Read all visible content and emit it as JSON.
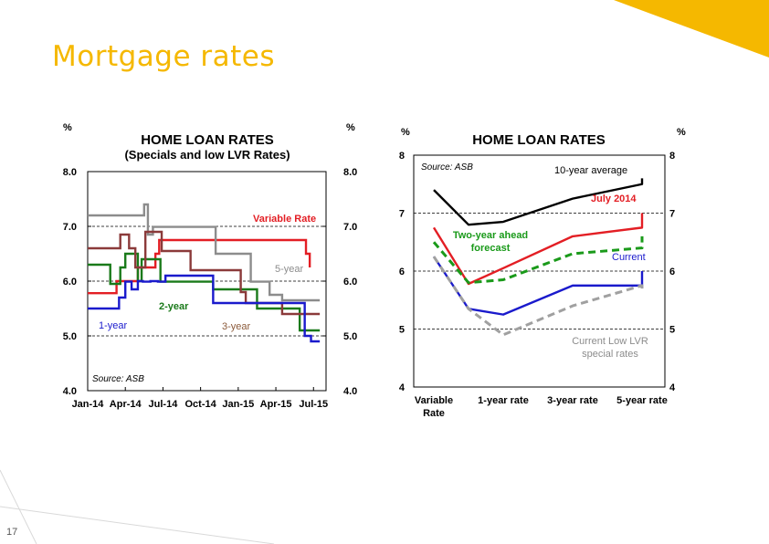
{
  "slide": {
    "title": "Mortgage rates",
    "page_number": "17",
    "accent_color": "#f5b800"
  },
  "chart_data": [
    {
      "type": "line",
      "title": "HOME LOAN RATES",
      "subtitle": "(Specials and low LVR Rates)",
      "unit_left": "%",
      "unit_right": "%",
      "source": "Source:  ASB",
      "ylim": [
        4.0,
        8.0
      ],
      "y_ticks": [
        "4.0",
        "5.0",
        "6.0",
        "7.0",
        "8.0"
      ],
      "x_tick_labels": [
        "Jan-14",
        "Apr-14",
        "Jul-14",
        "Oct-14",
        "Jan-15",
        "Apr-15",
        "Jul-15"
      ],
      "xlim": [
        0,
        19
      ],
      "dashed_gridlines": [
        5.0,
        6.0,
        7.0
      ],
      "step": true,
      "series": [
        {
          "name": "Variable Rate",
          "color": "#e31e24",
          "x": [
            0,
            1.9,
            2.3,
            3.3,
            4,
            4.6,
            5.4,
            5.7,
            6.9,
            17,
            17.4,
            17.7
          ],
          "y": [
            5.78,
            5.78,
            6.0,
            6.0,
            6.25,
            6.25,
            6.5,
            6.75,
            6.75,
            6.75,
            6.5,
            6.25
          ]
        },
        {
          "name": "5-year",
          "color": "#8c8c8c",
          "x": [
            0,
            2.5,
            4.5,
            4.8,
            5.2,
            10,
            10.2,
            12.5,
            13,
            14.5,
            15.5,
            18.5
          ],
          "y": [
            7.2,
            7.2,
            7.4,
            6.85,
            6.99,
            6.99,
            6.5,
            6.5,
            5.99,
            5.75,
            5.65,
            5.65
          ]
        },
        {
          "name": "2-year",
          "color": "#1a7a1a",
          "x": [
            0,
            1.3,
            1.8,
            2.6,
            3.0,
            3.5,
            4.0,
            4.3,
            5.5,
            5.8,
            6.4,
            7.5,
            10.0,
            13.0,
            13.5,
            16.5,
            16.9,
            18.5
          ],
          "y": [
            6.3,
            6.3,
            5.95,
            6.25,
            6.5,
            6.5,
            6.0,
            6.4,
            6.4,
            5.99,
            5.99,
            5.99,
            5.85,
            5.85,
            5.5,
            5.5,
            5.1,
            5.1
          ]
        },
        {
          "name": "3-year",
          "color": "#8b3a3a",
          "x": [
            0,
            2.0,
            2.6,
            3.3,
            3.8,
            4.3,
            4.6,
            5.5,
            5.9,
            7.7,
            8.2,
            10.0,
            12.2,
            12.6,
            15.5,
            18.5
          ],
          "y": [
            6.6,
            6.6,
            6.85,
            6.6,
            6.25,
            6.25,
            6.9,
            6.9,
            6.55,
            6.55,
            6.2,
            6.2,
            5.8,
            5.6,
            5.4,
            5.4
          ]
        },
        {
          "name": "1-year",
          "color": "#1a1acc",
          "x": [
            0,
            1.5,
            2.5,
            3.0,
            3.5,
            4.0,
            4.4,
            5.0,
            5.6,
            6.2,
            6.6,
            9.0,
            10.0,
            13.5,
            14.0,
            16.8,
            17.3,
            17.8,
            18.5
          ],
          "y": [
            5.5,
            5.5,
            5.7,
            5.99,
            5.85,
            6.0,
            5.99,
            6.0,
            5.99,
            6.1,
            6.1,
            6.1,
            5.6,
            5.6,
            5.6,
            5.6,
            5.0,
            4.9,
            4.9
          ]
        }
      ]
    },
    {
      "type": "line",
      "title": "HOME LOAN RATES",
      "unit_left": "%",
      "unit_right": "%",
      "source": "Source:  ASB",
      "ylim": [
        4,
        8
      ],
      "y_ticks": [
        "4",
        "5",
        "6",
        "7",
        "8"
      ],
      "categories": [
        "Variable Rate",
        "1-year rate",
        "3-year rate",
        "5-year rate"
      ],
      "x": [
        0,
        0.5,
        1,
        2,
        3,
        4
      ],
      "dashed_gridlines": [
        5,
        6,
        7
      ],
      "series": [
        {
          "name": "10-year average",
          "color": "#000000",
          "dashed": false,
          "y": [
            7.4,
            6.8,
            6.85,
            7.25,
            7.5,
            7.6
          ]
        },
        {
          "name": "July 2014",
          "color": "#e31e24",
          "dashed": false,
          "y": [
            6.75,
            5.78,
            6.05,
            6.6,
            6.75,
            7.0
          ]
        },
        {
          "name": "Two-year ahead forecast",
          "color": "#1a9a1a",
          "dashed": true,
          "y": [
            6.5,
            5.8,
            5.85,
            6.3,
            6.4,
            6.6
          ]
        },
        {
          "name": "Current",
          "color": "#1a1acc",
          "dashed": false,
          "y": [
            6.25,
            5.35,
            5.25,
            5.75,
            5.75,
            6.0
          ]
        },
        {
          "name": "Current Low LVR special rates",
          "color": "#a0a0a0",
          "dashed": true,
          "y": [
            6.25,
            5.35,
            4.9,
            5.4,
            5.75,
            5.65
          ]
        }
      ]
    }
  ]
}
